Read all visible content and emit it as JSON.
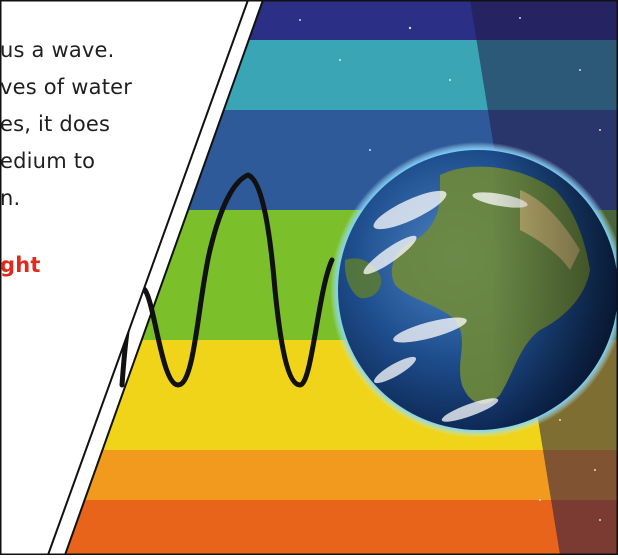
{
  "text_panel": {
    "lines": [
      "us a wave.",
      "ves of water",
      "es, it does",
      "edium to",
      "n."
    ],
    "highlight_word": "ght",
    "text_color": "#1f1f1f",
    "highlight_color": "#e12a1f"
  },
  "illustration": {
    "subject": "earth-over-light-spectrum",
    "band_colors": [
      "#2b2f86",
      "#3aa6b5",
      "#2f5a9a",
      "#7bbf2a",
      "#f0d419",
      "#f29a1e",
      "#e9641b"
    ],
    "wave_color": "#111111"
  }
}
